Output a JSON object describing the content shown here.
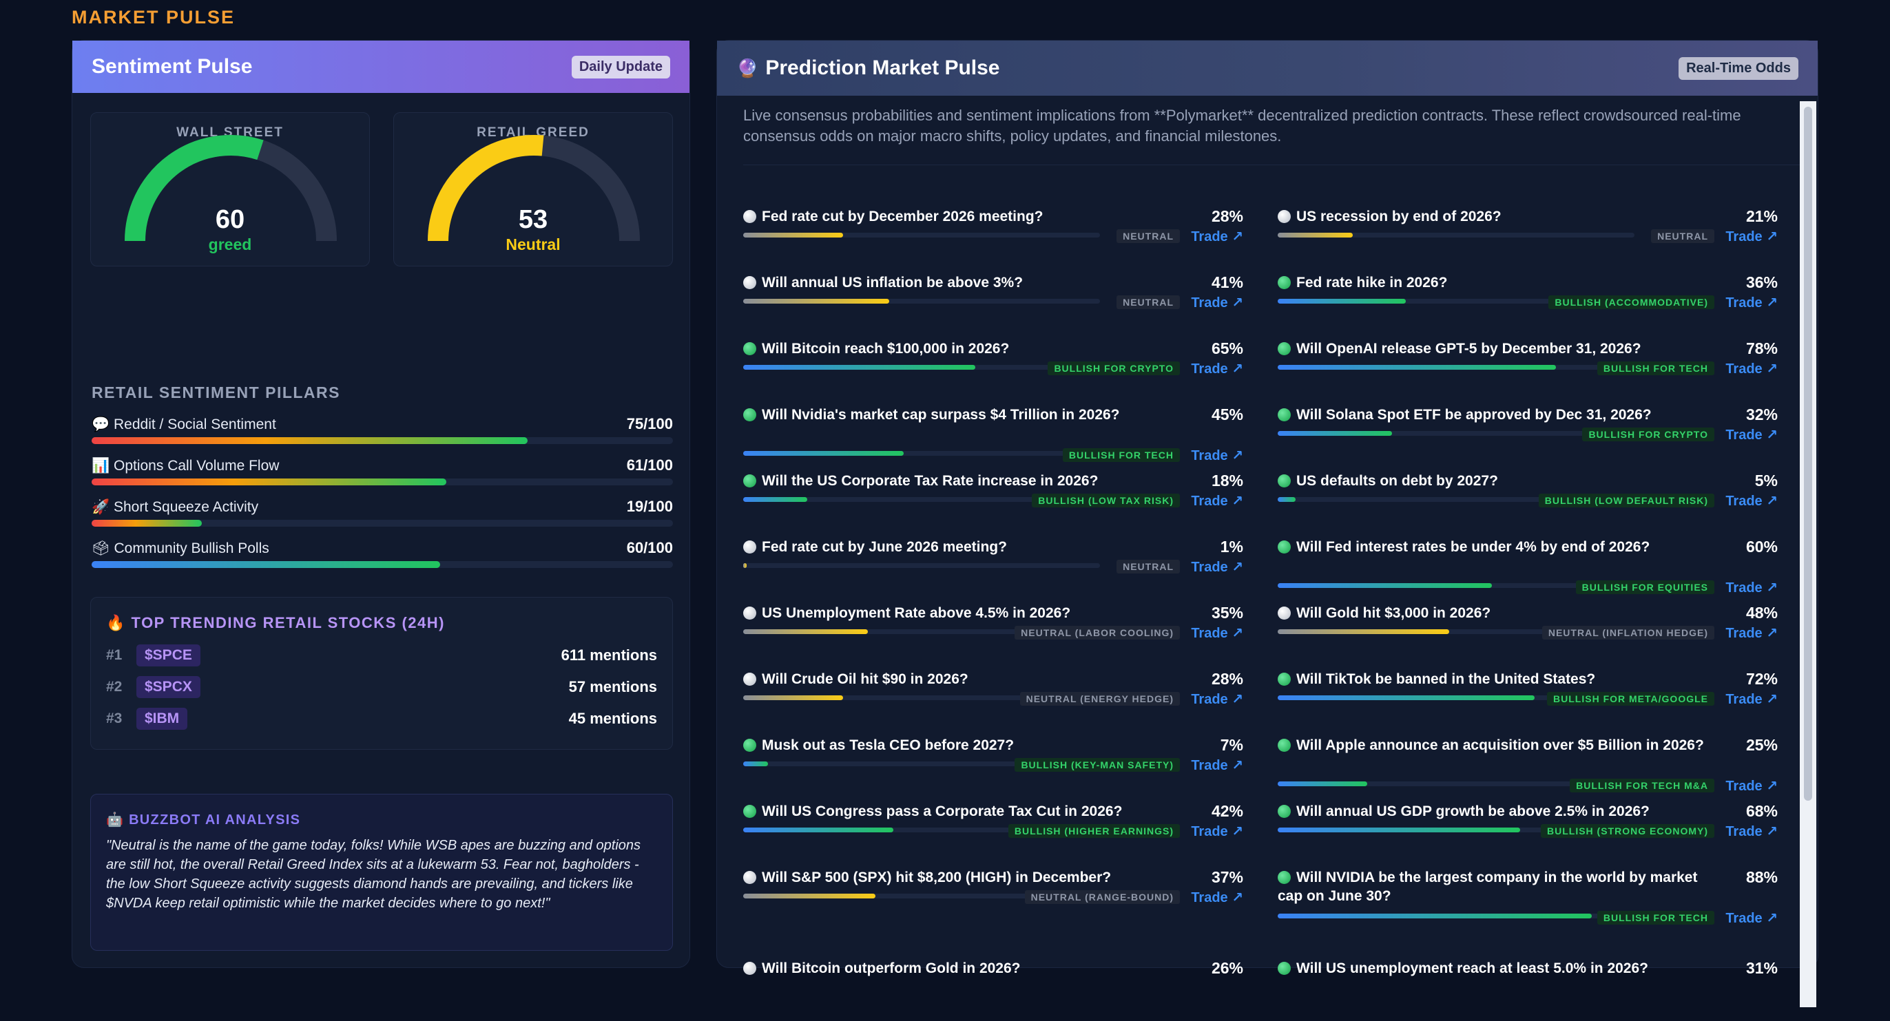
{
  "section_title": "MARKET PULSE",
  "sentiment": {
    "title": "Sentiment Pulse",
    "badge": "Daily Update",
    "gauges": [
      {
        "label": "WALL STREET",
        "value": 60,
        "value_text": "60",
        "sub": "greed",
        "color": "#22c55e"
      },
      {
        "label": "RETAIL GREED",
        "value": 53,
        "value_text": "53",
        "sub": "Neutral",
        "color": "#facc15"
      }
    ],
    "pillars_title": "RETAIL SENTIMENT PILLARS",
    "pillars": [
      {
        "icon": "💬",
        "label": "Reddit / Social Sentiment",
        "score": "75/100",
        "value": 75,
        "style": "warm"
      },
      {
        "icon": "📊",
        "label": "Options Call Volume Flow",
        "score": "61/100",
        "value": 61,
        "style": "warm"
      },
      {
        "icon": "🚀",
        "label": "Short Squeeze Activity",
        "score": "19/100",
        "value": 19,
        "style": "warm"
      },
      {
        "icon": "🗳",
        "label": "Community Bullish Polls",
        "score": "60/100",
        "value": 60,
        "style": "cool"
      }
    ],
    "trending": {
      "icon": "🔥",
      "title": "TOP TRENDING RETAIL STOCKS (24H)",
      "items": [
        {
          "rank": "#1",
          "ticker": "$SPCE",
          "mentions": "611 mentions"
        },
        {
          "rank": "#2",
          "ticker": "$SPCX",
          "mentions": "57 mentions"
        },
        {
          "rank": "#3",
          "ticker": "$IBM",
          "mentions": "45 mentions"
        }
      ]
    },
    "ai": {
      "icon": "🤖",
      "title": "BUZZBOT AI ANALYSIS",
      "text": "\"Neutral is the name of the game today, folks! While WSB apes are buzzing and options are still hot, the overall Retail Greed Index sits at a lukewarm 53. Fear not, bagholders - the low Short Squeeze activity suggests diamond hands are prevailing, and tickers like $NVDA keep retail optimistic while the market decides where to go next!\""
    }
  },
  "prediction": {
    "icon": "🔮",
    "title": "Prediction Market Pulse",
    "badge": "Real-Time Odds",
    "description": "Live consensus probabilities and sentiment implications from **Polymarket** decentralized prediction contracts. These reflect crowdsourced real-time consensus odds on major macro shifts, policy updates, and financial milestones.",
    "trade_label": "Trade ↗",
    "left": [
      {
        "q": "Fed rate cut by December 2026 meeting?",
        "pct": "28%",
        "value": 28,
        "tag": "NEUTRAL",
        "kind": "neutral"
      },
      {
        "q": "Will annual US inflation be above 3%?",
        "pct": "41%",
        "value": 41,
        "tag": "NEUTRAL",
        "kind": "neutral"
      },
      {
        "q": "Will Bitcoin reach $100,000 in 2026?",
        "pct": "65%",
        "value": 65,
        "tag": "BULLISH FOR CRYPTO",
        "kind": "bull"
      },
      {
        "q": "Will Nvidia's market cap surpass $4 Trillion in 2026?",
        "pct": "45%",
        "value": 45,
        "tag": "BULLISH FOR TECH",
        "kind": "bull"
      },
      {
        "q": "Will the US Corporate Tax Rate increase in 2026?",
        "pct": "18%",
        "value": 18,
        "tag": "BULLISH (LOW TAX RISK)",
        "kind": "bull"
      },
      {
        "q": "Fed rate cut by June 2026 meeting?",
        "pct": "1%",
        "value": 1,
        "tag": "NEUTRAL",
        "kind": "neutral"
      },
      {
        "q": "US Unemployment Rate above 4.5% in 2026?",
        "pct": "35%",
        "value": 35,
        "tag": "NEUTRAL (LABOR COOLING)",
        "kind": "neutral"
      },
      {
        "q": "Will Crude Oil hit $90 in 2026?",
        "pct": "28%",
        "value": 28,
        "tag": "NEUTRAL (ENERGY HEDGE)",
        "kind": "neutral"
      },
      {
        "q": "Musk out as Tesla CEO before 2027?",
        "pct": "7%",
        "value": 7,
        "tag": "BULLISH (KEY-MAN SAFETY)",
        "kind": "bull"
      },
      {
        "q": "Will US Congress pass a Corporate Tax Cut in 2026?",
        "pct": "42%",
        "value": 42,
        "tag": "BULLISH (HIGHER EARNINGS)",
        "kind": "bull"
      },
      {
        "q": "Will S&P 500 (SPX) hit $8,200 (HIGH) in December?",
        "pct": "37%",
        "value": 37,
        "tag": "NEUTRAL (RANGE-BOUND)",
        "kind": "neutral"
      },
      {
        "q": "Will Bitcoin outperform Gold in 2026?",
        "pct": "26%",
        "value": 26,
        "tag": "",
        "kind": "neutral"
      }
    ],
    "right": [
      {
        "q": "US recession by end of 2026?",
        "pct": "21%",
        "value": 21,
        "tag": "NEUTRAL",
        "kind": "neutral"
      },
      {
        "q": "Fed rate hike in 2026?",
        "pct": "36%",
        "value": 36,
        "tag": "BULLISH (ACCOMMODATIVE)",
        "kind": "bull"
      },
      {
        "q": "Will OpenAI release GPT-5 by December 31, 2026?",
        "pct": "78%",
        "value": 78,
        "tag": "BULLISH FOR TECH",
        "kind": "bull"
      },
      {
        "q": "Will Solana Spot ETF be approved by Dec 31, 2026?",
        "pct": "32%",
        "value": 32,
        "tag": "BULLISH FOR CRYPTO",
        "kind": "bull"
      },
      {
        "q": "US defaults on debt by 2027?",
        "pct": "5%",
        "value": 5,
        "tag": "BULLISH (LOW DEFAULT RISK)",
        "kind": "bull"
      },
      {
        "q": "Will Fed interest rates be under 4% by end of 2026?",
        "pct": "60%",
        "value": 60,
        "tag": "BULLISH FOR EQUITIES",
        "kind": "bull"
      },
      {
        "q": "Will Gold hit $3,000 in 2026?",
        "pct": "48%",
        "value": 48,
        "tag": "NEUTRAL (INFLATION HEDGE)",
        "kind": "neutral"
      },
      {
        "q": "Will TikTok be banned in the United States?",
        "pct": "72%",
        "value": 72,
        "tag": "BULLISH FOR META/GOOGLE",
        "kind": "bull"
      },
      {
        "q": "Will Apple announce an acquisition over $5 Billion in 2026?",
        "pct": "25%",
        "value": 25,
        "tag": "BULLISH FOR TECH M&A",
        "kind": "bull"
      },
      {
        "q": "Will annual US GDP growth be above 2.5% in 2026?",
        "pct": "68%",
        "value": 68,
        "tag": "BULLISH (STRONG ECONOMY)",
        "kind": "bull"
      },
      {
        "q": "Will NVIDIA be the largest company in the world by market cap on June 30?",
        "pct": "88%",
        "value": 88,
        "tag": "BULLISH FOR TECH",
        "kind": "bull"
      },
      {
        "q": "Will US unemployment reach at least 5.0% in 2026?",
        "pct": "31%",
        "value": 31,
        "tag": "",
        "kind": "bull"
      }
    ]
  }
}
